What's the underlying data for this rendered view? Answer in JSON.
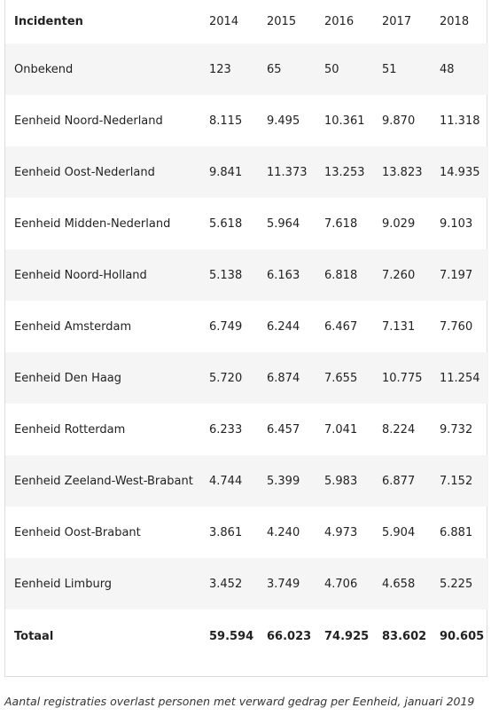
{
  "table": {
    "header": {
      "label": "Incidenten",
      "years": [
        "2014",
        "2015",
        "2016",
        "2017",
        "2018"
      ]
    },
    "rows": [
      {
        "name": "Onbekend",
        "values": [
          "123",
          "65",
          "50",
          "51",
          "48"
        ]
      },
      {
        "name": "Eenheid Noord-Nederland",
        "values": [
          "8.115",
          "9.495",
          "10.361",
          "9.870",
          "11.318"
        ]
      },
      {
        "name": "Eenheid Oost-Nederland",
        "values": [
          "9.841",
          "11.373",
          "13.253",
          "13.823",
          "14.935"
        ]
      },
      {
        "name": "Eenheid Midden-Nederland",
        "values": [
          "5.618",
          "5.964",
          "7.618",
          "9.029",
          "9.103"
        ]
      },
      {
        "name": "Eenheid Noord-Holland",
        "values": [
          "5.138",
          "6.163",
          "6.818",
          "7.260",
          "7.197"
        ]
      },
      {
        "name": "Eenheid Amsterdam",
        "values": [
          "6.749",
          "6.244",
          "6.467",
          "7.131",
          "7.760"
        ]
      },
      {
        "name": "Eenheid Den Haag",
        "values": [
          "5.720",
          "6.874",
          "7.655",
          "10.775",
          "11.254"
        ]
      },
      {
        "name": "Eenheid Rotterdam",
        "values": [
          "6.233",
          "6.457",
          "7.041",
          "8.224",
          "9.732"
        ]
      },
      {
        "name": "Eenheid Zeeland-West-Brabant",
        "values": [
          "4.744",
          "5.399",
          "5.983",
          "6.877",
          "7.152"
        ]
      },
      {
        "name": "Eenheid Oost-Brabant",
        "values": [
          "3.861",
          "4.240",
          "4.973",
          "5.904",
          "6.881"
        ]
      },
      {
        "name": "Eenheid Limburg",
        "values": [
          "3.452",
          "3.749",
          "4.706",
          "4.658",
          "5.225"
        ]
      }
    ],
    "total": {
      "name": "Totaal",
      "values": [
        "59.594",
        "66.023",
        "74.925",
        "83.602",
        "90.605"
      ]
    }
  },
  "caption": "Aantal registraties overlast personen met verward gedrag per Eenheid, januari 2019"
}
